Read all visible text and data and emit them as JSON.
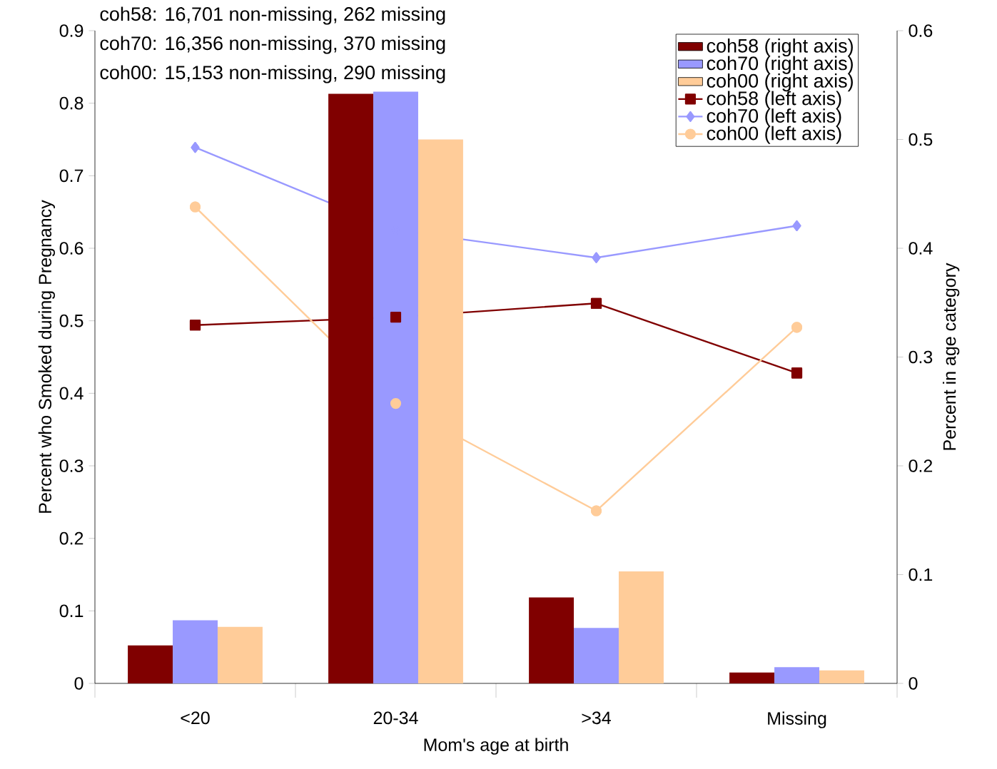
{
  "chart_data": {
    "type": "bar",
    "categories": [
      "<20",
      "20-34",
      ">34",
      "Missing"
    ],
    "xlabel": "Mom's age at birth",
    "ylabel": "Percent who Smoked during Pregnancy",
    "y2label": "Percent in age category",
    "ylim": [
      0,
      0.9
    ],
    "yticks": [
      0,
      0.1,
      0.2,
      0.3,
      0.4,
      0.5,
      0.6,
      0.7,
      0.8,
      0.9
    ],
    "y2lim": [
      0,
      0.6
    ],
    "y2ticks": [
      0,
      0.1,
      0.2,
      0.3,
      0.4,
      0.5,
      0.6
    ],
    "legend": "top right",
    "annotations": [
      "coh58: 16,701 non-missing, 262 missing",
      "coh70: 16,356 non-missing, 370 missing",
      "coh00: 15,153 non-missing, 290 missing"
    ],
    "series": [
      {
        "name": "coh58 (right axis)",
        "axis": "y2",
        "color": "#800000",
        "values": [
          0.035,
          0.542,
          0.079,
          0.01
        ]
      },
      {
        "name": "coh70 (right axis)",
        "axis": "y2",
        "color": "#9999ff",
        "values": [
          0.058,
          0.544,
          0.051,
          0.015
        ]
      },
      {
        "name": "coh00 (right axis)",
        "axis": "y2",
        "color": "#ffcc99",
        "values": [
          0.052,
          0.5,
          0.103,
          0.012
        ]
      },
      {
        "name": "coh58 (left axis)",
        "type": "line",
        "axis": "y",
        "marker": "square",
        "color": "#800000",
        "values": [
          0.494,
          0.505,
          0.524,
          0.428
        ]
      },
      {
        "name": "coh70 (left axis)",
        "type": "line",
        "axis": "y",
        "marker": "diamond",
        "color": "#9999ff",
        "values": [
          0.739,
          0.625,
          0.587,
          0.631
        ]
      },
      {
        "name": "coh00 (left axis)",
        "type": "line",
        "axis": "y",
        "marker": "circle",
        "color": "#ffcc99",
        "values": [
          0.657,
          0.386,
          0.238,
          0.491
        ]
      }
    ]
  }
}
